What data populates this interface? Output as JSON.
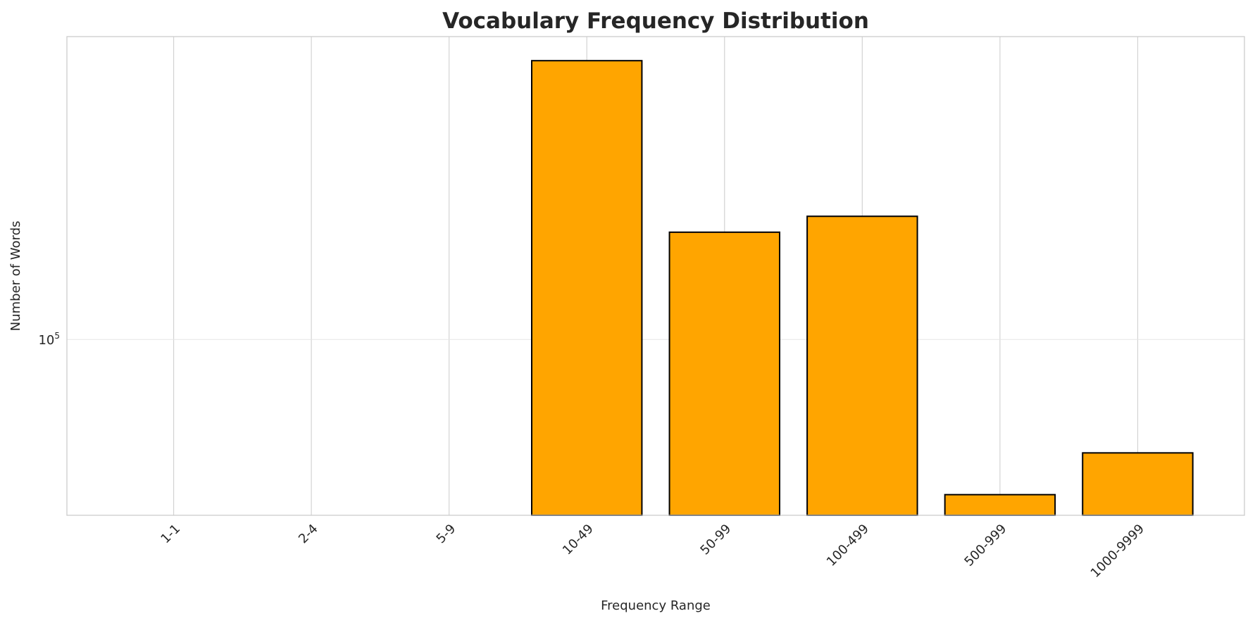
{
  "chart_data": {
    "type": "bar",
    "title": "Vocabulary Frequency Distribution",
    "xlabel": "Frequency Range",
    "ylabel": "Number of Words",
    "categories": [
      "1-1",
      "2-4",
      "5-9",
      "10-49",
      "50-99",
      "100-499",
      "500-999",
      "1000-9999"
    ],
    "values": [
      0,
      0,
      0,
      258000,
      144000,
      152000,
      59000,
      68000
    ],
    "y_scale": "log",
    "ylim": [
      55000,
      280000
    ],
    "y_ticks": [
      {
        "base": "10",
        "exp": "5",
        "value": 100000
      }
    ],
    "grid": true,
    "colors": {
      "bar_fill": "#FFA500",
      "bar_edge": "#000000",
      "grid": "#E5E5E5",
      "spine": "#CCCCCC",
      "text": "#262626"
    }
  }
}
